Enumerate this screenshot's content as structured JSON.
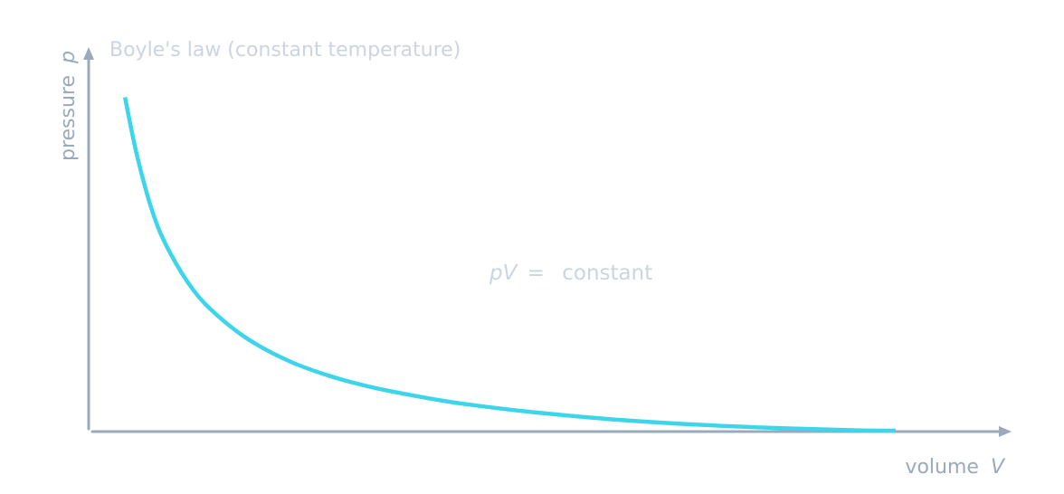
{
  "chart_data": {
    "type": "line",
    "title": "Boyle's law (constant temperature)",
    "xlabel": {
      "text": "volume",
      "symbol": "V"
    },
    "ylabel": {
      "text": "pressure",
      "symbol": "p"
    },
    "annotation": {
      "symbol": "pV",
      "equals": "=",
      "text": "constant"
    },
    "x_range": [
      0,
      1.0
    ],
    "y_range": [
      0,
      1.0
    ],
    "grid": false,
    "ticks": false,
    "series": [
      {
        "color": "#3dd5ea",
        "x": [
          0.045,
          0.06,
          0.08,
          0.1,
          0.13,
          0.16,
          0.2,
          0.25,
          0.3,
          0.35,
          0.4,
          0.45,
          0.5,
          0.55,
          0.6,
          0.65,
          0.7,
          0.75,
          0.8,
          0.85,
          0.9,
          0.95,
          1.0
        ],
        "y": [
          0.865,
          0.713,
          0.562,
          0.465,
          0.364,
          0.298,
          0.234,
          0.179,
          0.141,
          0.113,
          0.092,
          0.074,
          0.06,
          0.048,
          0.038,
          0.029,
          0.022,
          0.016,
          0.011,
          0.007,
          0.004,
          0.001,
          0.0
        ]
      }
    ],
    "axis_color": "#9aa9bb",
    "text_color": "#cbd5e1"
  }
}
